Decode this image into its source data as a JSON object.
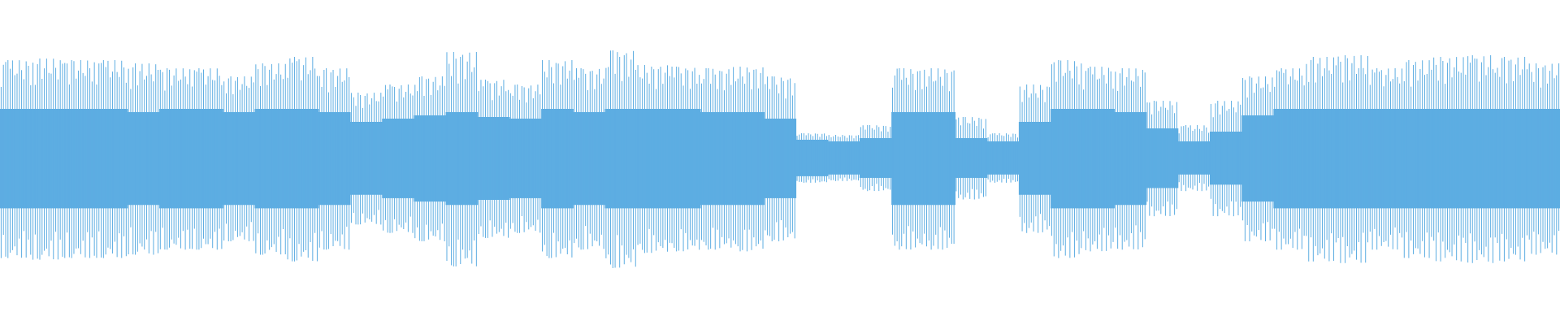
{
  "chart_data": {
    "type": "waveform",
    "color": "#5dade2",
    "peaks": [
      0.6,
      0.61,
      0.6,
      0.6,
      0.58,
      0.55,
      0.55,
      0.5,
      0.58,
      0.62,
      0.55,
      0.4,
      0.45,
      0.5,
      0.65,
      0.48,
      0.45,
      0.6,
      0.55,
      0.66,
      0.57,
      0.56,
      0.55,
      0.56,
      0.5,
      0.15,
      0.14,
      0.2,
      0.55,
      0.55,
      0.25,
      0.15,
      0.45,
      0.6,
      0.56,
      0.55,
      0.35,
      0.2,
      0.35,
      0.5,
      0.55,
      0.62,
      0.63,
      0.55,
      0.6,
      0.62,
      0.63,
      0.62,
      0.58
    ],
    "rms": [
      0.3,
      0.3,
      0.3,
      0.3,
      0.28,
      0.3,
      0.3,
      0.28,
      0.3,
      0.3,
      0.28,
      0.22,
      0.24,
      0.26,
      0.28,
      0.25,
      0.24,
      0.3,
      0.28,
      0.3,
      0.3,
      0.3,
      0.28,
      0.28,
      0.24,
      0.11,
      0.1,
      0.12,
      0.28,
      0.28,
      0.12,
      0.1,
      0.22,
      0.3,
      0.3,
      0.28,
      0.18,
      0.1,
      0.16,
      0.26,
      0.3,
      0.3,
      0.3,
      0.3,
      0.3,
      0.3,
      0.3,
      0.3,
      0.3
    ]
  }
}
